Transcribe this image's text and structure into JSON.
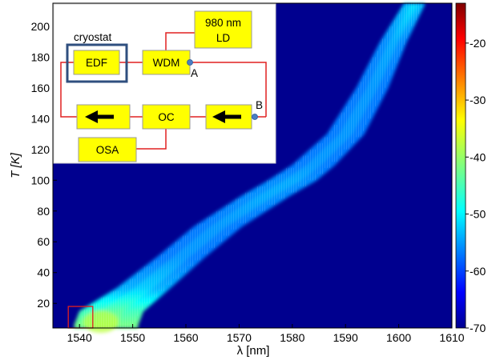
{
  "chart_data": {
    "type": "heatmap",
    "xlabel": "λ [nm]",
    "ylabel": "T [K]",
    "xlim": [
      1535,
      1610
    ],
    "ylim": [
      4,
      215
    ],
    "x_ticks": [
      1540,
      1550,
      1560,
      1570,
      1580,
      1590,
      1600,
      1610
    ],
    "y_ticks": [
      20,
      40,
      60,
      80,
      100,
      120,
      140,
      160,
      180,
      200
    ],
    "colorbar": {
      "range": [
        -70,
        -13
      ],
      "ticks": [
        -20,
        -30,
        -40,
        -50,
        -60,
        -70
      ],
      "colormap": "jet"
    },
    "ridge": {
      "description_units": "lasing band centre wavelength (nm) vs temperature (K)",
      "points": [
        {
          "t": 6,
          "center": 1545,
          "half_width": 6,
          "level": -42
        },
        {
          "t": 15,
          "center": 1546,
          "half_width": 6,
          "level": -45
        },
        {
          "t": 30,
          "center": 1552,
          "half_width": 5,
          "level": -53
        },
        {
          "t": 50,
          "center": 1559,
          "half_width": 4.5,
          "level": -56
        },
        {
          "t": 70,
          "center": 1566,
          "half_width": 4.5,
          "level": -56
        },
        {
          "t": 90,
          "center": 1575,
          "half_width": 4.5,
          "level": -55
        },
        {
          "t": 100,
          "center": 1580,
          "half_width": 4.5,
          "level": -55
        },
        {
          "t": 110,
          "center": 1584,
          "half_width": 4,
          "level": -56
        },
        {
          "t": 130,
          "center": 1590,
          "half_width": 3.5,
          "level": -56
        },
        {
          "t": 160,
          "center": 1595,
          "half_width": 3,
          "level": -56
        },
        {
          "t": 190,
          "center": 1599,
          "half_width": 2.5,
          "level": -55
        },
        {
          "t": 215,
          "center": 1603,
          "half_width": 2,
          "level": -52
        }
      ],
      "background_level": -70
    },
    "marker_box": {
      "x": [
        1540,
        1542.5
      ],
      "y": [
        4,
        18
      ]
    }
  },
  "inset": {
    "cryostat_label": "cryostat",
    "blocks": [
      {
        "id": "edf",
        "label": "EDF"
      },
      {
        "id": "wdm",
        "label": "WDM"
      },
      {
        "id": "ld",
        "label_line1": "980 nm",
        "label_line2": "LD"
      },
      {
        "id": "oc",
        "label": "OC"
      },
      {
        "id": "osa",
        "label": "OSA"
      }
    ],
    "point_a": "A",
    "point_b": "B",
    "colors": {
      "block_fill": "#ffff00",
      "block_stroke": "#999999",
      "line": "#e02020",
      "cryostat_box": "#2f4f7f",
      "point": "#4a7ec4"
    }
  }
}
